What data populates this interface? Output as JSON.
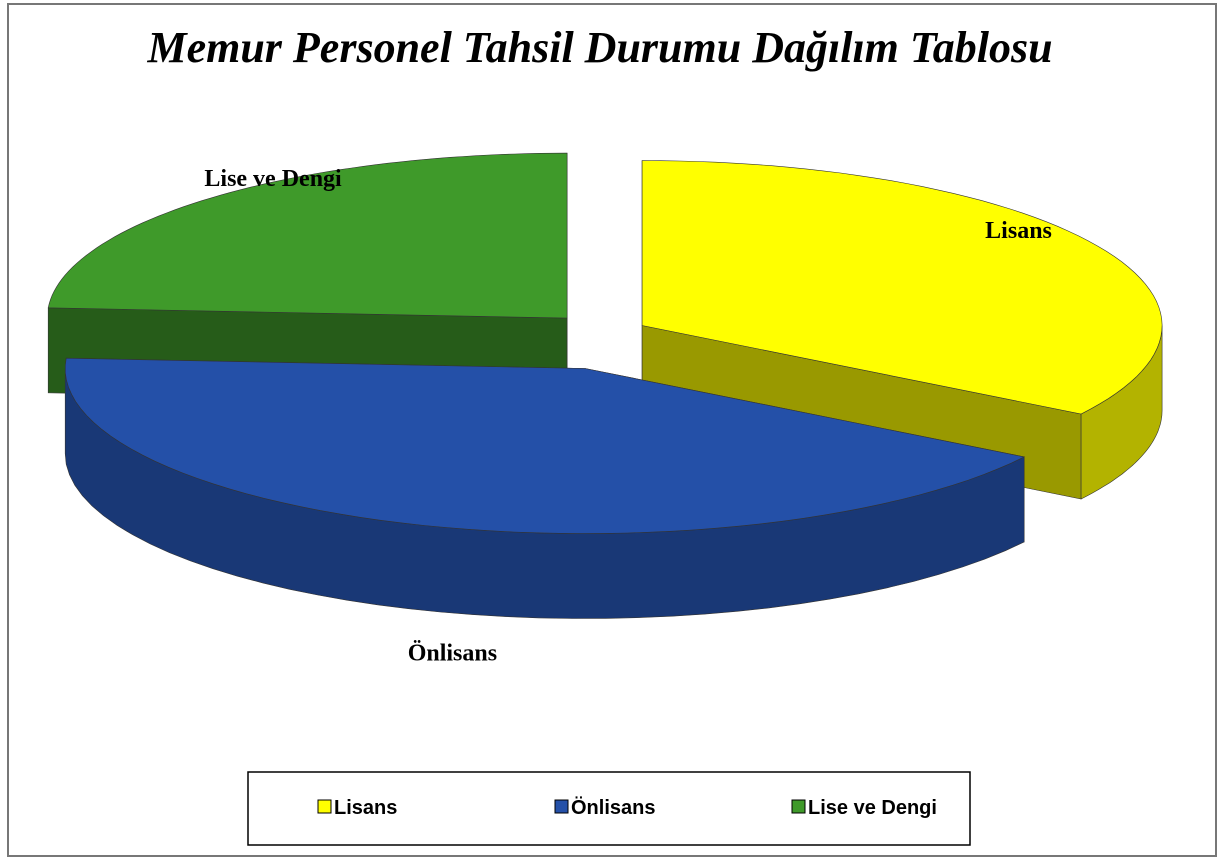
{
  "chart_data": {
    "type": "pie3d",
    "title": "Memur Personel Tahsil Durumu Dağılım Tablosu",
    "categories": [
      "Lisans",
      "Önlisans",
      "Lise ve Dengi"
    ],
    "values": [
      34,
      42,
      24
    ],
    "colors": [
      "#ffff00",
      "#2450a8",
      "#3f9a2a"
    ],
    "legend": "bottom"
  }
}
